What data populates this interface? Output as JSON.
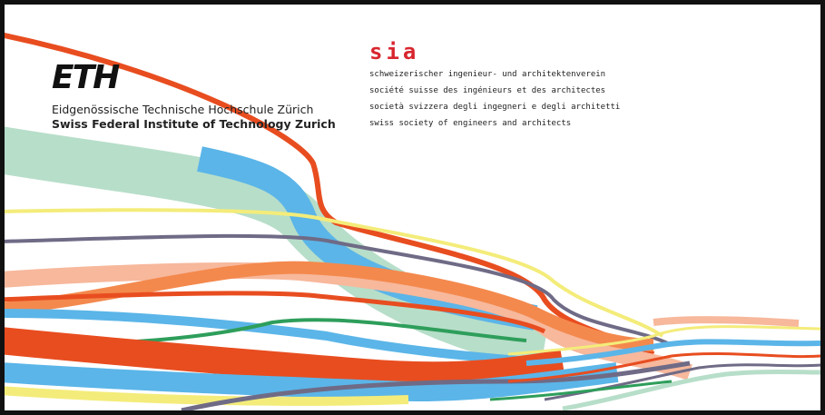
{
  "left_logo": {
    "mark": "ETH",
    "lines": [
      "Eidgenössische Technische Hochschule Zürich",
      "Swiss Federal Institute of Technology Zurich"
    ]
  },
  "right_logo": {
    "mark": "sia",
    "lines": [
      "schweizerischer ingenieur- und architektenverein",
      "société suisse des ingénieurs et des architectes",
      "società svizzera degli ingegneri e degli architetti",
      "swiss society of engineers and architects"
    ]
  }
}
